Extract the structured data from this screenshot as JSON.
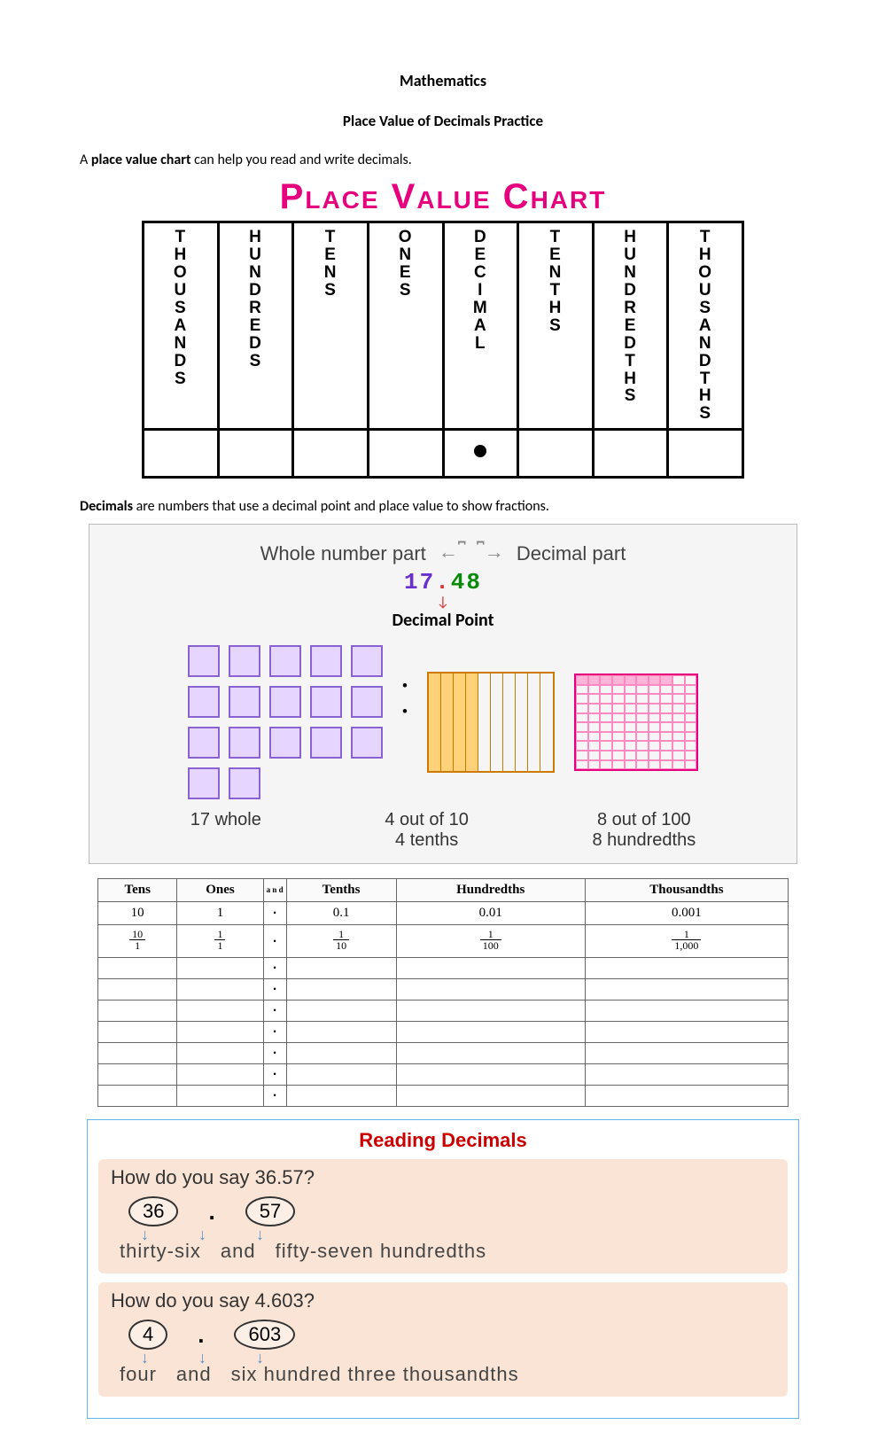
{
  "doc": {
    "title1": "Mathematics",
    "title2": "Place Value of Decimals Practice",
    "intro_pre": "A ",
    "intro_bold": "place value chart",
    "intro_post": " can help you read and write decimals.",
    "pvc_heading": "Place Value Chart",
    "pvc_columns": [
      "THOUSANDS",
      "HUNDREDS",
      "TENS",
      "ONES",
      "DECIMAL",
      "TENTHS",
      "HUNDREDTHS",
      "THOUSANDTHS"
    ],
    "def_bold": "Decimals",
    "def_rest": " are numbers that use a decimal point and place value to show fractions."
  },
  "diagram": {
    "whole_label": "Whole number part",
    "decimal_label": "Decimal part",
    "number_whole": "17",
    "number_dot": ".",
    "number_frac": "48",
    "dp_label": "Decimal Point",
    "whole_count": 17,
    "tenths_filled": 4,
    "hund_filled": 8,
    "caption_whole": "17 whole",
    "caption_tenths_1": "4 out of 10",
    "caption_tenths_2": "4 tenths",
    "caption_hund_1": "8 out of 100",
    "caption_hund_2": "8 hundredths",
    "colors": {
      "whole_fill": "#e6d6ff",
      "whole_border": "#8a63d2",
      "tenths_fill": "#ffd27a",
      "tenths_border": "#cc7a00",
      "hund_fill": "#ffb3d9",
      "hund_border": "#e6007e"
    }
  },
  "pv_small": {
    "headers": [
      "Tens",
      "Ones",
      "a n d",
      "Tenths",
      "Hundredths",
      "Thousandths"
    ],
    "row_dec": [
      "10",
      "1",
      "•",
      "0.1",
      "0.01",
      "0.001"
    ],
    "row_frac": [
      {
        "n": "10",
        "d": "1"
      },
      {
        "n": "1",
        "d": "1"
      },
      "•",
      {
        "n": "1",
        "d": "10"
      },
      {
        "n": "1",
        "d": "100"
      },
      {
        "n": "1",
        "d": "1,000"
      }
    ],
    "blank_rows": 7
  },
  "reading": {
    "title": "Reading Decimals",
    "q1": "How do you say 36.57?",
    "q1_parts": [
      "36",
      ".",
      "57"
    ],
    "q1_words": [
      "thirty-six",
      "and",
      "fifty-seven hundredths"
    ],
    "q2": "How do you say 4.603?",
    "q2_parts": [
      "4",
      ".",
      "603"
    ],
    "q2_words": [
      "four",
      "and",
      "six hundred three thousandths"
    ]
  }
}
